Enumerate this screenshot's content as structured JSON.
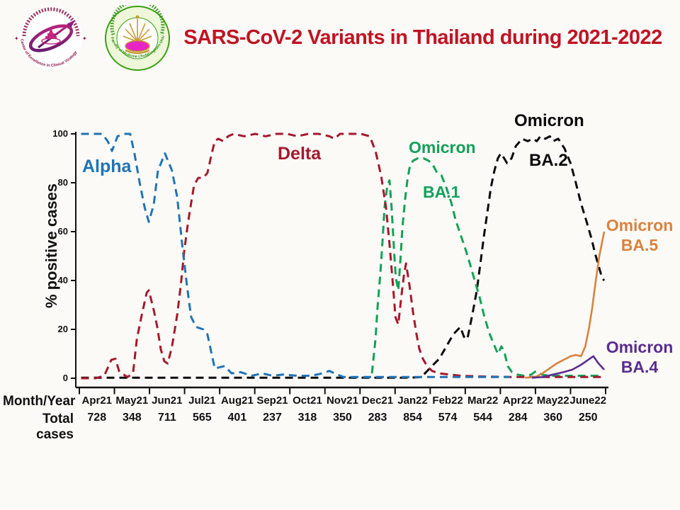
{
  "header": {
    "title": "SARS-CoV-2 Variants in Thailand during 2021-2022",
    "logo_left_text": "Center of Excellence in Clinical Virology",
    "logo_right_text": "Faculty of Medicine Chulalongkorn University"
  },
  "chart_data": {
    "type": "line",
    "title": "SARS-CoV-2 Variants in Thailand during 2021-2022",
    "xlabel": "Month/Year",
    "totals_label": "Total cases",
    "ylabel": "% positive cases",
    "ylim": [
      0,
      100
    ],
    "y_ticks": [
      0,
      20,
      40,
      60,
      80,
      100
    ],
    "grid": false,
    "legend": "inline-annotations",
    "months": [
      {
        "label": "Apr21",
        "total": "728"
      },
      {
        "label": "May21",
        "total": "348"
      },
      {
        "label": "Jun21",
        "total": "711"
      },
      {
        "label": "Jul21",
        "total": "565"
      },
      {
        "label": "Aug21",
        "total": "401"
      },
      {
        "label": "Sep21",
        "total": "237"
      },
      {
        "label": "Oct21",
        "total": "318"
      },
      {
        "label": "Nov21",
        "total": "350"
      },
      {
        "label": "Dec21",
        "total": "283"
      },
      {
        "label": "Jan22",
        "total": "854"
      },
      {
        "label": "Feb22",
        "total": "574"
      },
      {
        "label": "Mar22",
        "total": "544"
      },
      {
        "label": "Apr22",
        "total": "284"
      },
      {
        "label": "May22",
        "total": "360"
      },
      {
        "label": "June22",
        "total": "250"
      }
    ],
    "labels": {
      "alpha": "Alpha",
      "delta": "Delta",
      "ba1_top": "Omicron",
      "ba1_bot": "BA.1",
      "ba2_top": "Omicron",
      "ba2_bot": "BA.2",
      "ba5_top": "Omicron",
      "ba5_bot": "BA.5",
      "ba4_top": "Omicron",
      "ba4_bot": "BA.4"
    },
    "series": [
      {
        "name": "Omicron BA.2",
        "color": "#0a0a0a",
        "style": "dashed",
        "points": [
          [
            0.05,
            0.2
          ],
          [
            0.6,
            0.2
          ],
          [
            1.2,
            0.2
          ],
          [
            1.8,
            0.2
          ],
          [
            2.4,
            0.2
          ],
          [
            3.0,
            0.2
          ],
          [
            3.6,
            0.2
          ],
          [
            4.2,
            0.2
          ],
          [
            4.8,
            0.2
          ],
          [
            5.4,
            0.2
          ],
          [
            6.0,
            0.2
          ],
          [
            6.6,
            0.2
          ],
          [
            7.2,
            0.2
          ],
          [
            7.8,
            0.2
          ],
          [
            8.4,
            0.2
          ],
          [
            9.0,
            0.2
          ],
          [
            9.4,
            0.2
          ],
          [
            9.75,
            0.5
          ],
          [
            9.85,
            2
          ],
          [
            10.05,
            5
          ],
          [
            10.26,
            8
          ],
          [
            10.46,
            13
          ],
          [
            10.66,
            18
          ],
          [
            10.86,
            21
          ],
          [
            10.96,
            17
          ],
          [
            11.06,
            16
          ],
          [
            11.2,
            26
          ],
          [
            11.33,
            36
          ],
          [
            11.43,
            47
          ],
          [
            11.53,
            58
          ],
          [
            11.63,
            68
          ],
          [
            11.73,
            78
          ],
          [
            11.83,
            85
          ],
          [
            11.93,
            90
          ],
          [
            12.01,
            92
          ],
          [
            12.11,
            90
          ],
          [
            12.19,
            88
          ],
          [
            12.32,
            90
          ],
          [
            12.44,
            95
          ],
          [
            12.62,
            98
          ],
          [
            12.78,
            97
          ],
          [
            12.92,
            98
          ],
          [
            13.04,
            97
          ],
          [
            13.14,
            99
          ],
          [
            13.28,
            98
          ],
          [
            13.41,
            99
          ],
          [
            13.51,
            97
          ],
          [
            13.65,
            98
          ],
          [
            13.83,
            94
          ],
          [
            14.0,
            88
          ],
          [
            14.15,
            80
          ],
          [
            14.29,
            72
          ],
          [
            14.46,
            64
          ],
          [
            14.6,
            57
          ],
          [
            14.7,
            51
          ],
          [
            14.8,
            46
          ],
          [
            14.9,
            41
          ],
          [
            14.96,
            40
          ]
        ]
      },
      {
        "name": "Omicron BA.1",
        "color": "#12a158",
        "style": "dashed",
        "points": [
          [
            8.34,
            2
          ],
          [
            8.44,
            16
          ],
          [
            8.5,
            29
          ],
          [
            8.58,
            43
          ],
          [
            8.64,
            56
          ],
          [
            8.7,
            70
          ],
          [
            8.78,
            79
          ],
          [
            8.84,
            81
          ],
          [
            8.9,
            70
          ],
          [
            8.94,
            60
          ],
          [
            8.98,
            50
          ],
          [
            9.02,
            41
          ],
          [
            9.09,
            36
          ],
          [
            9.15,
            48
          ],
          [
            9.21,
            62
          ],
          [
            9.29,
            74
          ],
          [
            9.35,
            81
          ],
          [
            9.41,
            86
          ],
          [
            9.51,
            89
          ],
          [
            9.65,
            90
          ],
          [
            9.81,
            90
          ],
          [
            9.95,
            89
          ],
          [
            10.05,
            88
          ],
          [
            10.2,
            84
          ],
          [
            10.32,
            83
          ],
          [
            10.46,
            78
          ],
          [
            10.6,
            72
          ],
          [
            10.72,
            65
          ],
          [
            10.86,
            59
          ],
          [
            11.0,
            53
          ],
          [
            11.13,
            47
          ],
          [
            11.27,
            40
          ],
          [
            11.41,
            33
          ],
          [
            11.53,
            26
          ],
          [
            11.67,
            19
          ],
          [
            11.81,
            14
          ],
          [
            11.93,
            10
          ],
          [
            12.03,
            13
          ],
          [
            12.11,
            11
          ],
          [
            12.21,
            5
          ],
          [
            12.33,
            2.5
          ],
          [
            12.48,
            1.5
          ],
          [
            12.68,
            1
          ],
          [
            12.88,
            1.5
          ],
          [
            13.02,
            3
          ],
          [
            13.18,
            1.5
          ],
          [
            13.39,
            1
          ],
          [
            13.69,
            1
          ],
          [
            14.09,
            1
          ],
          [
            14.5,
            1
          ],
          [
            14.9,
            1
          ]
        ]
      },
      {
        "name": "Delta",
        "color": "#a5182c",
        "style": "dashed",
        "points": [
          [
            0.05,
            0
          ],
          [
            0.46,
            0
          ],
          [
            0.71,
            1
          ],
          [
            0.91,
            7.5
          ],
          [
            1.03,
            8
          ],
          [
            1.13,
            3
          ],
          [
            1.21,
            2
          ],
          [
            1.37,
            0.5
          ],
          [
            1.53,
            2
          ],
          [
            1.64,
            16
          ],
          [
            1.78,
            26
          ],
          [
            1.92,
            35
          ],
          [
            1.98,
            36
          ],
          [
            2.12,
            28
          ],
          [
            2.22,
            21
          ],
          [
            2.32,
            12
          ],
          [
            2.42,
            7
          ],
          [
            2.52,
            6
          ],
          [
            2.64,
            13
          ],
          [
            2.79,
            26
          ],
          [
            2.89,
            38
          ],
          [
            2.99,
            52
          ],
          [
            3.09,
            63
          ],
          [
            3.19,
            72
          ],
          [
            3.27,
            79
          ],
          [
            3.39,
            82
          ],
          [
            3.53,
            82
          ],
          [
            3.65,
            84
          ],
          [
            3.76,
            91
          ],
          [
            3.86,
            97
          ],
          [
            3.96,
            98
          ],
          [
            4.1,
            97
          ],
          [
            4.24,
            99
          ],
          [
            4.4,
            100
          ],
          [
            4.7,
            99
          ],
          [
            5.01,
            100
          ],
          [
            5.31,
            99
          ],
          [
            5.61,
            100
          ],
          [
            5.92,
            100
          ],
          [
            6.22,
            99
          ],
          [
            6.52,
            100
          ],
          [
            6.82,
            100
          ],
          [
            7.13,
            99
          ],
          [
            7.27,
            98
          ],
          [
            7.43,
            100
          ],
          [
            7.73,
            100
          ],
          [
            8.03,
            100
          ],
          [
            8.28,
            99
          ],
          [
            8.44,
            93
          ],
          [
            8.6,
            83
          ],
          [
            8.74,
            70
          ],
          [
            8.84,
            55
          ],
          [
            8.94,
            38
          ],
          [
            9.01,
            25
          ],
          [
            9.09,
            22
          ],
          [
            9.19,
            35
          ],
          [
            9.25,
            42
          ],
          [
            9.31,
            47
          ],
          [
            9.41,
            38
          ],
          [
            9.51,
            27
          ],
          [
            9.61,
            18
          ],
          [
            9.69,
            12
          ],
          [
            9.79,
            8
          ],
          [
            9.91,
            5
          ],
          [
            10.05,
            3
          ],
          [
            10.26,
            2
          ],
          [
            10.56,
            1.5
          ],
          [
            10.86,
            1
          ],
          [
            11.27,
            0.8
          ],
          [
            11.87,
            0.6
          ],
          [
            12.48,
            0.5
          ],
          [
            13.08,
            0.5
          ],
          [
            13.69,
            0.5
          ],
          [
            14.29,
            0.5
          ],
          [
            14.9,
            0.5
          ]
        ]
      },
      {
        "name": "Alpha",
        "color": "#2173b4",
        "style": "dashed",
        "points": [
          [
            0.05,
            100
          ],
          [
            0.35,
            100
          ],
          [
            0.65,
            100
          ],
          [
            0.81,
            97
          ],
          [
            0.93,
            93
          ],
          [
            1.09,
            99
          ],
          [
            1.27,
            100
          ],
          [
            1.45,
            100
          ],
          [
            1.57,
            92
          ],
          [
            1.72,
            80
          ],
          [
            1.86,
            70
          ],
          [
            1.98,
            64
          ],
          [
            2.12,
            71
          ],
          [
            2.24,
            85
          ],
          [
            2.44,
            92
          ],
          [
            2.64,
            85
          ],
          [
            2.79,
            74
          ],
          [
            2.93,
            55
          ],
          [
            3.05,
            40
          ],
          [
            3.13,
            31
          ],
          [
            3.19,
            25
          ],
          [
            3.33,
            21
          ],
          [
            3.53,
            20
          ],
          [
            3.65,
            18
          ],
          [
            3.86,
            4
          ],
          [
            4.14,
            5
          ],
          [
            4.34,
            2
          ],
          [
            4.6,
            2.5
          ],
          [
            4.91,
            1
          ],
          [
            5.21,
            2
          ],
          [
            5.51,
            1
          ],
          [
            5.81,
            1.5
          ],
          [
            6.22,
            1
          ],
          [
            6.62,
            1
          ],
          [
            6.92,
            2
          ],
          [
            7.13,
            3
          ],
          [
            7.27,
            2
          ],
          [
            7.53,
            0.5
          ],
          [
            7.83,
            0.5
          ],
          [
            8.24,
            0.5
          ],
          [
            8.64,
            0.5
          ],
          [
            9.04,
            0.5
          ],
          [
            9.45,
            0.5
          ],
          [
            9.85,
            0.5
          ],
          [
            10.26,
            0.5
          ],
          [
            10.66,
            0.5
          ],
          [
            11.06,
            0.5
          ],
          [
            11.47,
            0.5
          ],
          [
            11.87,
            0.5
          ],
          [
            12.27,
            0.5
          ]
        ]
      },
      {
        "name": "Omicron BA.5",
        "color": "#d9823f",
        "style": "solid",
        "points": [
          [
            12.7,
            0.2
          ],
          [
            13.0,
            0.5
          ],
          [
            13.2,
            2
          ],
          [
            13.4,
            4
          ],
          [
            13.6,
            6
          ],
          [
            13.8,
            7.5
          ],
          [
            14.0,
            9
          ],
          [
            14.15,
            9.5
          ],
          [
            14.3,
            9
          ],
          [
            14.42,
            13
          ],
          [
            14.52,
            20
          ],
          [
            14.62,
            29
          ],
          [
            14.72,
            40
          ],
          [
            14.82,
            50
          ],
          [
            14.96,
            60
          ]
        ]
      },
      {
        "name": "Omicron BA.4",
        "color": "#5b2c8f",
        "style": "solid",
        "points": [
          [
            12.9,
            0.2
          ],
          [
            13.2,
            0.5
          ],
          [
            13.5,
            1.5
          ],
          [
            13.8,
            2.5
          ],
          [
            14.05,
            3.5
          ],
          [
            14.3,
            5.5
          ],
          [
            14.5,
            7.5
          ],
          [
            14.65,
            9
          ],
          [
            14.8,
            6
          ],
          [
            14.96,
            3.5
          ]
        ]
      }
    ]
  }
}
